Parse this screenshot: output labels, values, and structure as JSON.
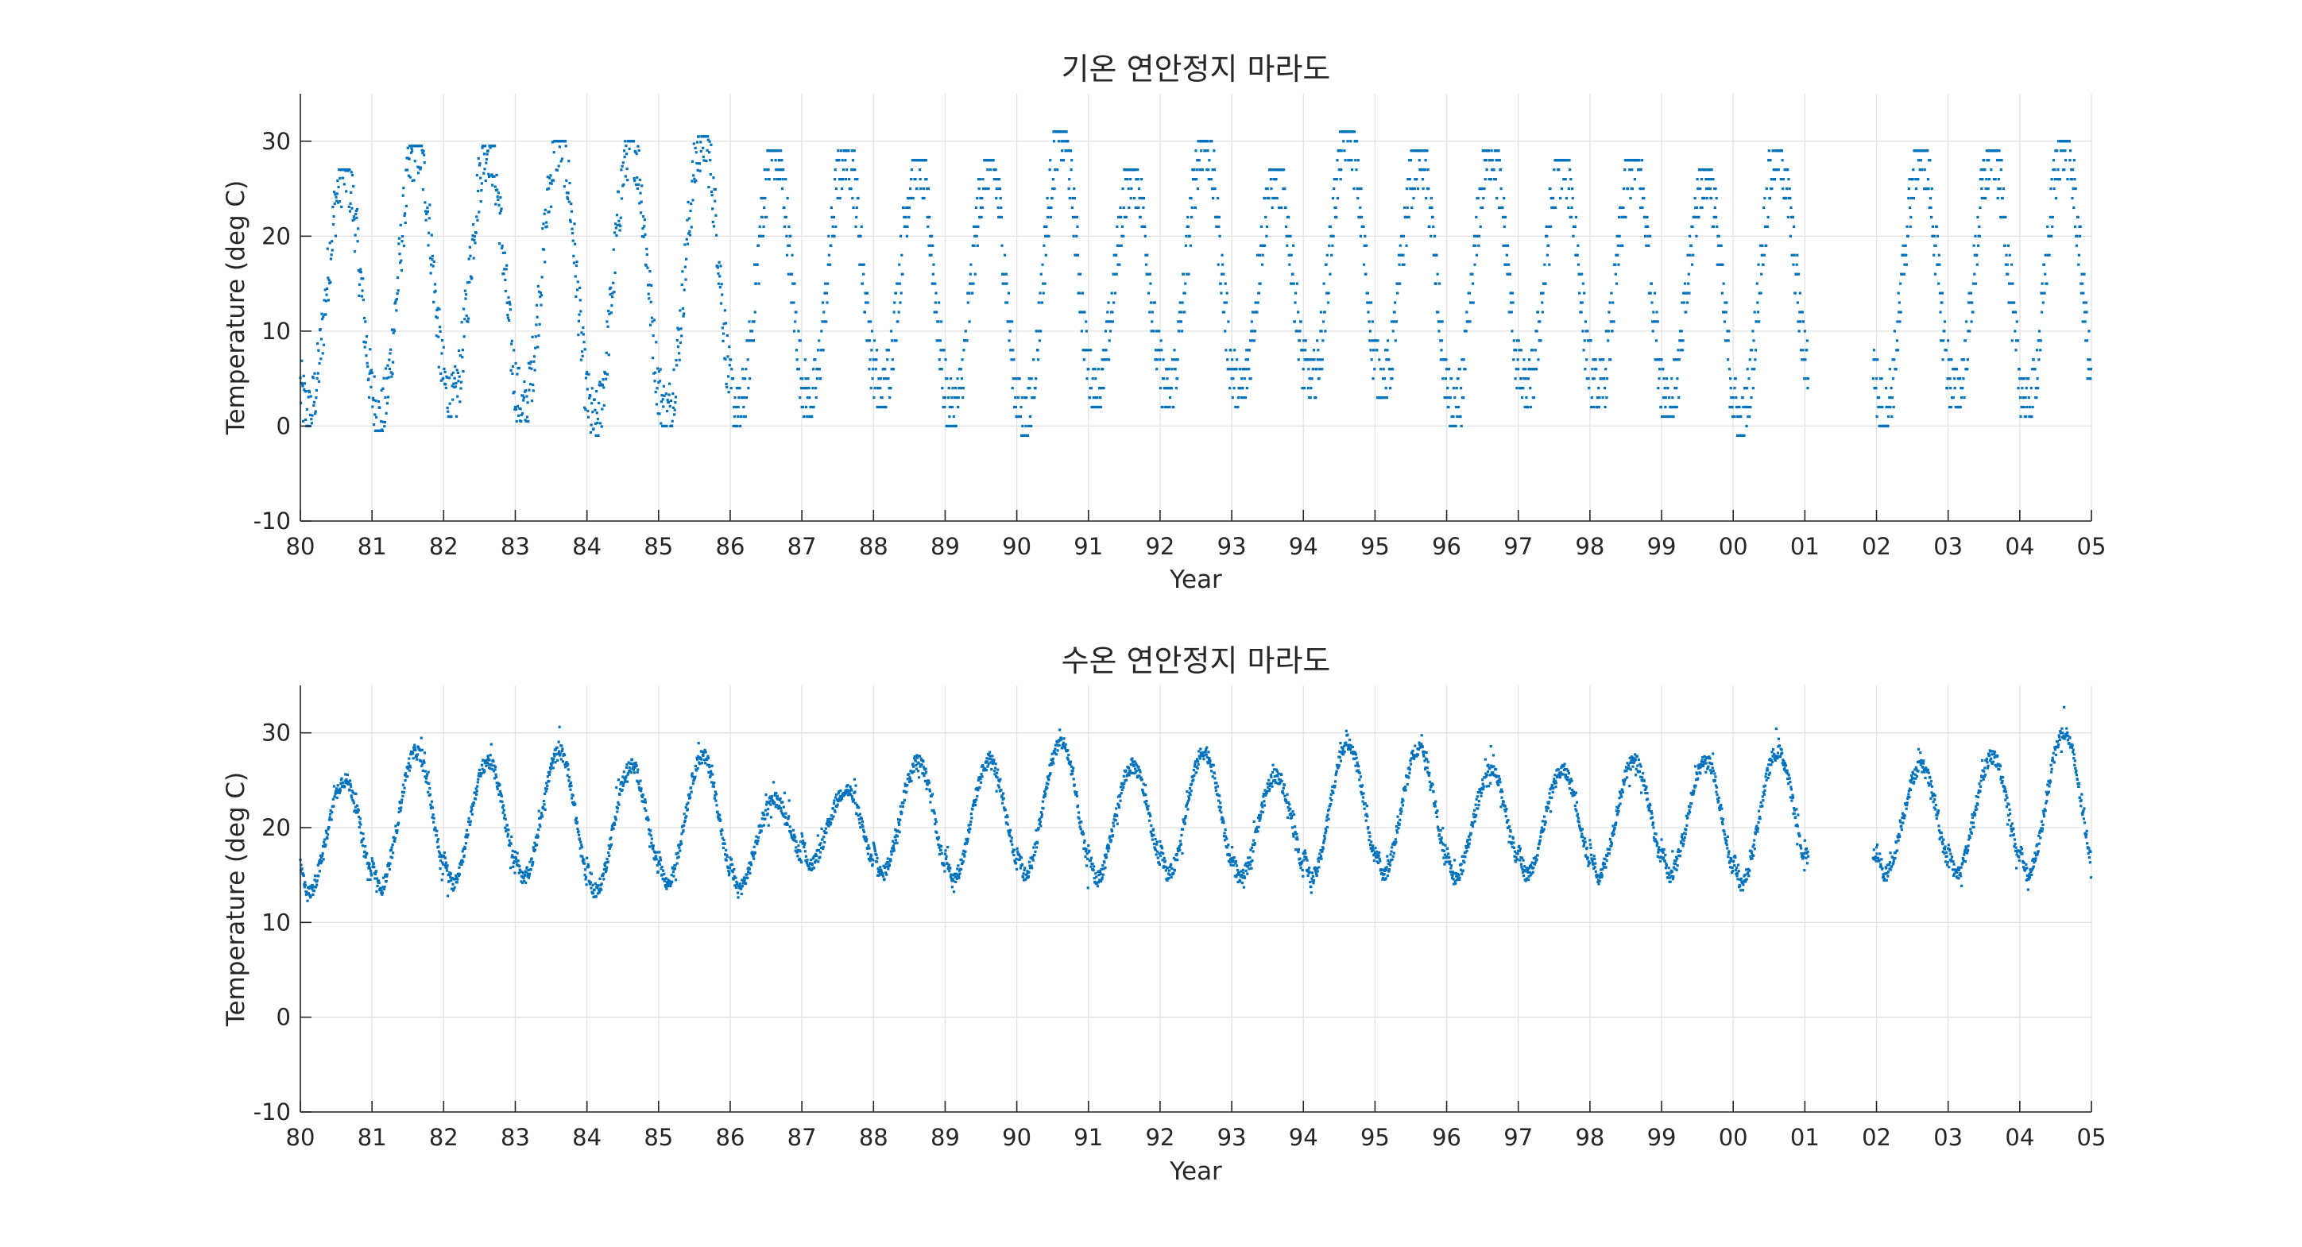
{
  "chart_data": [
    {
      "type": "scatter",
      "title": "기온 연안정지 마라도",
      "xlabel": "Year",
      "ylabel": "Temperature (deg C)",
      "xlim": [
        1980,
        2005
      ],
      "ylim": [
        -10,
        35
      ],
      "yticks": [
        -10,
        0,
        10,
        20,
        30
      ],
      "xticks": [
        "80",
        "81",
        "82",
        "83",
        "84",
        "85",
        "86",
        "87",
        "88",
        "89",
        "90",
        "91",
        "92",
        "93",
        "94",
        "95",
        "96",
        "97",
        "98",
        "99",
        "00",
        "01",
        "02",
        "03",
        "04",
        "05"
      ],
      "grid": true,
      "color": "#0072BD",
      "gap": [
        2001.05,
        2001.95
      ],
      "peaks": [
        27,
        29.5,
        29.5,
        30,
        30,
        30.5,
        29,
        29,
        28,
        28,
        31,
        27,
        30,
        27,
        31,
        29,
        29,
        28,
        28,
        27,
        29,
        29,
        29,
        29,
        30
      ],
      "troughs": [
        1,
        0.5,
        2,
        1.5,
        0,
        1,
        1,
        2,
        3,
        1,
        0,
        3,
        3,
        3,
        4,
        4,
        1,
        3,
        3,
        2,
        0,
        5,
        1,
        3,
        2
      ],
      "series": [
        {
          "x": [
            1980.0,
            1980.08,
            1980.17,
            1980.25,
            1980.33,
            1980.42,
            1980.5,
            1980.58,
            1980.67,
            1980.75,
            1980.83,
            1980.92,
            1981.0,
            1981.08,
            1981.17,
            1981.25,
            1981.33,
            1981.42,
            1981.5,
            1981.58,
            1981.67,
            1981.75,
            1981.83,
            1981.92,
            1982.0
          ],
          "y": [
            5,
            4,
            8,
            13,
            17,
            21,
            24,
            26,
            24,
            18,
            11,
            6,
            3,
            2,
            7,
            12,
            17,
            22,
            26,
            28,
            25,
            19,
            12,
            7,
            4
          ]
        }
      ]
    },
    {
      "type": "scatter",
      "title": "수온 연안정지 마라도",
      "xlabel": "Year",
      "ylabel": "Temperature (deg C)",
      "xlim": [
        1980,
        2005
      ],
      "ylim": [
        -10,
        35
      ],
      "yticks": [
        -10,
        0,
        10,
        20,
        30
      ],
      "xticks": [
        "80",
        "81",
        "82",
        "83",
        "84",
        "85",
        "86",
        "87",
        "88",
        "89",
        "90",
        "91",
        "92",
        "93",
        "94",
        "95",
        "96",
        "97",
        "98",
        "99",
        "00",
        "01",
        "02",
        "03",
        "04",
        "05"
      ],
      "grid": true,
      "color": "#0072BD",
      "gap": [
        2001.05,
        2001.95
      ],
      "peaks": [
        25,
        28,
        27,
        28,
        26.5,
        27.5,
        23,
        24,
        27,
        27,
        29,
        26.5,
        28,
        25.5,
        29,
        28.5,
        26,
        26,
        27,
        27,
        28,
        26.5,
        26.5,
        27.5,
        30
      ],
      "troughs": [
        13,
        13.5,
        14,
        14.5,
        13,
        14,
        13.5,
        16,
        15,
        14.5,
        15,
        14.5,
        15,
        14.5,
        14.5,
        15,
        14.5,
        15,
        15,
        15,
        14,
        15,
        15,
        15,
        15
      ],
      "series": [
        {
          "x": [
            1980.0,
            1980.08,
            1980.17,
            1980.25,
            1980.33,
            1980.42,
            1980.5,
            1980.58,
            1980.67,
            1980.75,
            1980.83,
            1980.92,
            1981.0,
            1981.08,
            1981.17,
            1981.25,
            1981.33,
            1981.42,
            1981.5,
            1981.58,
            1981.67,
            1981.75,
            1981.83,
            1981.92,
            1982.0
          ],
          "y": [
            17,
            13,
            13,
            15,
            17,
            20,
            23,
            25,
            24,
            21,
            17,
            15,
            14,
            14,
            14,
            16,
            19,
            23,
            26,
            28,
            25,
            21,
            17,
            15,
            14
          ]
        }
      ]
    }
  ]
}
